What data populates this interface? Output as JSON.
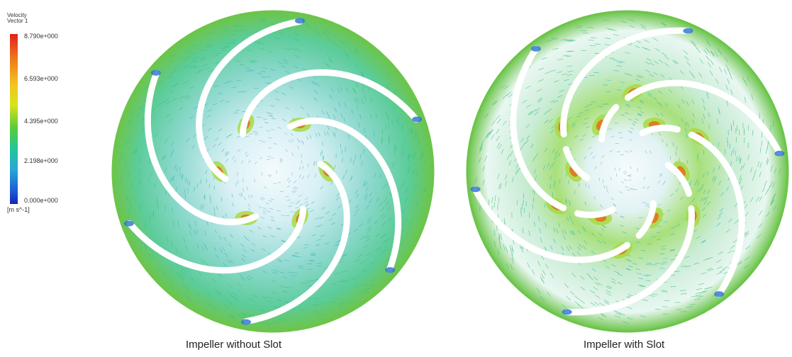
{
  "legend": {
    "title_line1": "Velocity",
    "title_line2": "Vector 1",
    "ticks": [
      "8.790e+000",
      "6.593e+000",
      "4.395e+000",
      "2.198e+000",
      "0.000e+000"
    ],
    "units": "[m s^-1]"
  },
  "panels": [
    {
      "caption": "Impeller without Slot",
      "icon": "impeller-velocity-field"
    },
    {
      "caption": "Impeller with Slot",
      "icon": "slotted-impeller-velocity-field"
    }
  ],
  "colors": {
    "high": "#e0201a",
    "mid_high": "#f2c51e",
    "mid": "#59cc3a",
    "mid_low": "#27a5d8",
    "low": "#1623b8",
    "blade": "#ffffff",
    "rim": "#6cc54a"
  }
}
